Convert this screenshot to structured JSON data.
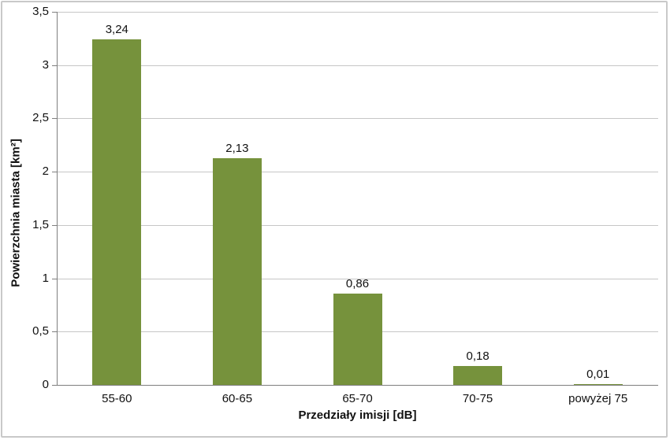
{
  "chart_data": {
    "type": "bar",
    "title": "",
    "categories": [
      "55-60",
      "60-65",
      "65-70",
      "70-75",
      "powyżej 75"
    ],
    "values": [
      3.24,
      2.13,
      0.86,
      0.18,
      0.01
    ],
    "value_labels": [
      "3,24",
      "2,13",
      "0,86",
      "0,18",
      "0,01"
    ],
    "xlabel": "Przedziały imisji [dB]",
    "ylabel": "Powierzchnia miasta [km²]",
    "ylim": [
      0,
      3.5
    ],
    "ytick_step": 0.5,
    "ytick_labels": [
      "0",
      "0,5",
      "1",
      "1,5",
      "2",
      "2,5",
      "3",
      "3,5"
    ],
    "grid": true,
    "legend": "none",
    "decimal_separator": ",",
    "colors": {
      "bar": "#76923C",
      "gridline": "#C6C6C6",
      "axis": "#7F7F7F",
      "text": "#111111",
      "frame_border": "#C9C9C9",
      "background": "#FFFFFF"
    }
  }
}
